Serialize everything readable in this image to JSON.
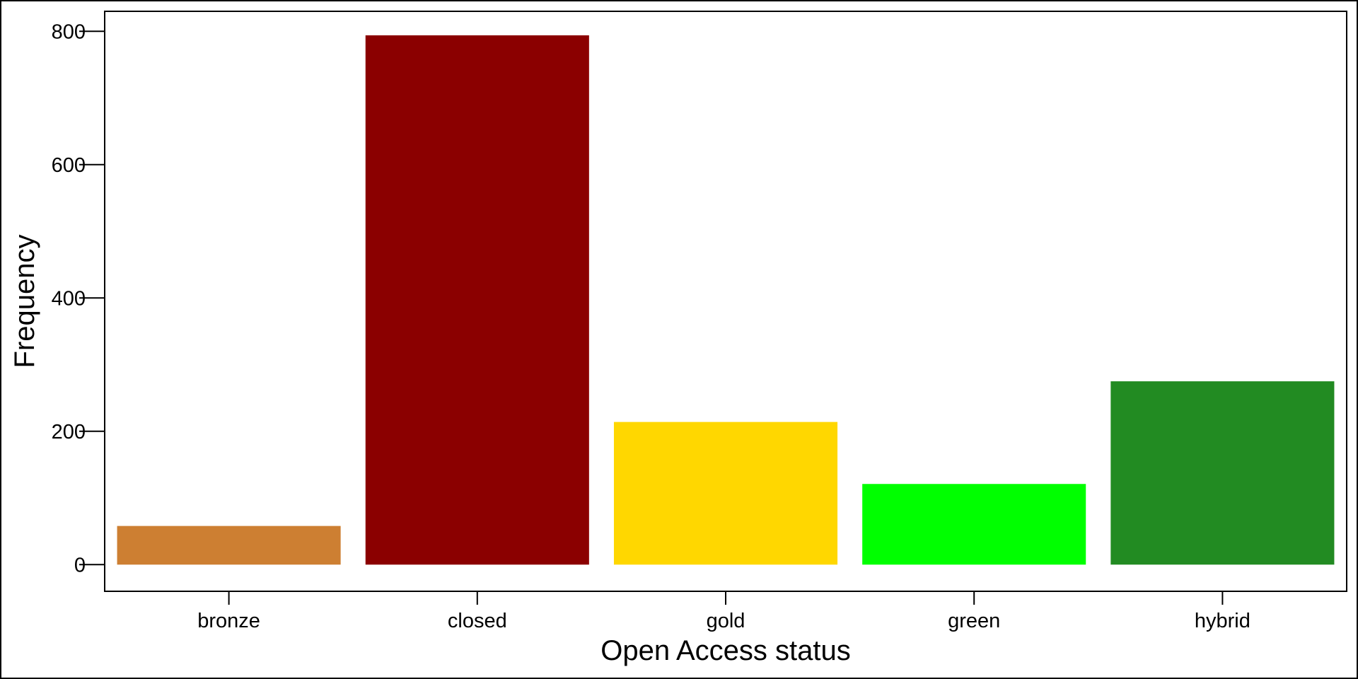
{
  "chart_data": {
    "type": "bar",
    "title": "",
    "xlabel": "Open Access status",
    "ylabel": "Frequency",
    "categories": [
      "bronze",
      "closed",
      "gold",
      "green",
      "hybrid"
    ],
    "values": [
      58,
      794,
      214,
      121,
      275
    ],
    "colors": [
      "#CD7F32",
      "#8B0000",
      "#FFD700",
      "#00FF00",
      "#228B22"
    ],
    "ylim": [
      -40,
      830
    ],
    "yticks": [
      0,
      200,
      400,
      600,
      800
    ],
    "grid": false,
    "legend": "none"
  }
}
